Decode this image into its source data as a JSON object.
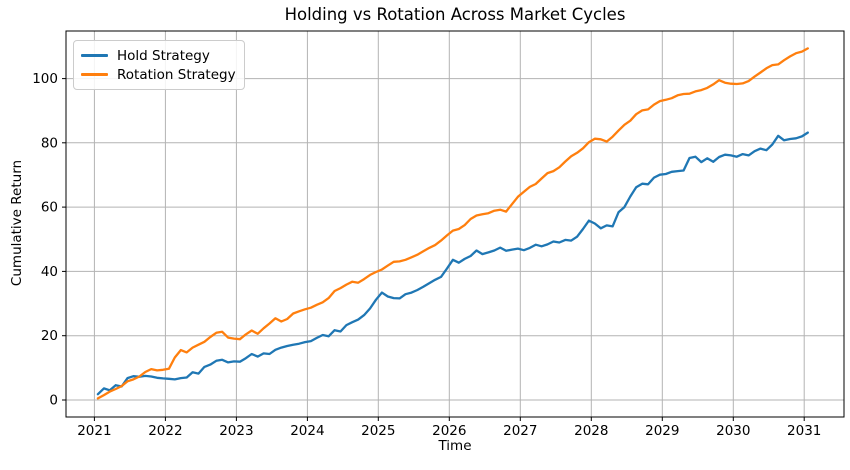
{
  "chart_data": {
    "type": "line",
    "title": "Holding vs Rotation Across Market Cycles",
    "xlabel": "Time",
    "ylabel": "Cumulative Return",
    "x_ticks": [
      2021,
      2022,
      2023,
      2024,
      2025,
      2026,
      2027,
      2028,
      2029,
      2030,
      2031
    ],
    "y_ticks": [
      0,
      20,
      40,
      60,
      80,
      100
    ],
    "xlim": [
      2020.6,
      2031.56
    ],
    "ylim": [
      -5.3,
      114.8
    ],
    "grid": true,
    "grid_color": "#b3b3b3",
    "spine_color": "#000000",
    "legend_position": "upper-left",
    "x": {
      "start": 2021.05,
      "end": 2031.05,
      "n": 121,
      "spacing": "uniform-monthly"
    },
    "series": [
      {
        "name": "Hold Strategy",
        "color": "#1f77b4",
        "values": [
          1.8,
          3.6,
          3.0,
          4.6,
          4.2,
          6.8,
          7.4,
          7.2,
          7.5,
          7.3,
          6.9,
          6.7,
          6.6,
          6.4,
          6.8,
          7.0,
          8.6,
          8.2,
          10.3,
          11.0,
          12.2,
          12.5,
          11.7,
          12.0,
          11.9,
          13.0,
          14.3,
          13.5,
          14.5,
          14.3,
          15.6,
          16.3,
          16.8,
          17.2,
          17.5,
          18.0,
          18.3,
          19.3,
          20.2,
          19.8,
          21.7,
          21.3,
          23.3,
          24.2,
          25.0,
          26.4,
          28.5,
          31.2,
          33.4,
          32.2,
          31.7,
          31.6,
          32.9,
          33.4,
          34.2,
          35.2,
          36.3,
          37.4,
          38.3,
          40.9,
          43.6,
          42.7,
          43.9,
          44.8,
          46.5,
          45.4,
          45.9,
          46.5,
          47.4,
          46.4,
          46.8,
          47.1,
          46.6,
          47.3,
          48.3,
          47.8,
          48.4,
          49.3,
          49.0,
          49.8,
          49.6,
          50.8,
          53.2,
          55.8,
          54.9,
          53.4,
          54.3,
          54.0,
          58.4,
          60.0,
          63.3,
          66.2,
          67.3,
          67.1,
          69.2,
          70.1,
          70.3,
          71.0,
          71.2,
          71.4,
          75.3,
          75.7,
          74.0,
          75.2,
          74.1,
          75.6,
          76.3,
          76.1,
          75.7,
          76.5,
          76.1,
          77.4,
          78.2,
          77.7,
          79.5,
          82.2,
          80.8,
          81.2,
          81.4,
          82.0,
          83.2
        ]
      },
      {
        "name": "Rotation Strategy",
        "color": "#ff7f0e",
        "values": [
          0.5,
          1.5,
          2.6,
          3.4,
          4.3,
          5.8,
          6.4,
          7.3,
          8.7,
          9.6,
          9.2,
          9.4,
          9.7,
          13.2,
          15.5,
          14.8,
          16.3,
          17.2,
          18.1,
          19.6,
          20.9,
          21.2,
          19.4,
          19.1,
          18.9,
          20.4,
          21.6,
          20.6,
          22.3,
          23.8,
          25.4,
          24.4,
          25.2,
          26.9,
          27.6,
          28.2,
          28.7,
          29.6,
          30.4,
          31.7,
          33.9,
          34.8,
          35.9,
          36.8,
          36.5,
          37.6,
          38.9,
          39.8,
          40.6,
          41.8,
          43.0,
          43.1,
          43.6,
          44.4,
          45.2,
          46.3,
          47.3,
          48.2,
          49.6,
          51.2,
          52.7,
          53.2,
          54.4,
          56.3,
          57.4,
          57.8,
          58.1,
          58.9,
          59.2,
          58.6,
          60.9,
          63.2,
          64.8,
          66.3,
          67.2,
          68.9,
          70.6,
          71.2,
          72.4,
          74.2,
          75.8,
          76.9,
          78.3,
          80.2,
          81.3,
          81.1,
          80.4,
          81.9,
          83.8,
          85.6,
          86.9,
          88.9,
          90.1,
          90.4,
          91.9,
          93.0,
          93.4,
          93.9,
          94.8,
          95.2,
          95.3,
          96.0,
          96.4,
          97.1,
          98.2,
          99.5,
          98.7,
          98.4,
          98.3,
          98.5,
          99.2,
          100.6,
          101.9,
          103.2,
          104.2,
          104.4,
          105.7,
          106.9,
          107.9,
          108.4,
          109.4
        ]
      }
    ]
  }
}
